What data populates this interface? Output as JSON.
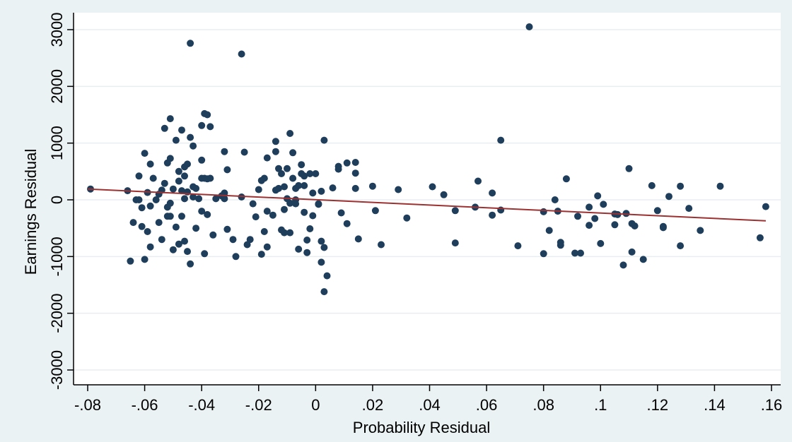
{
  "chart_data": {
    "type": "scatter",
    "title": "",
    "xlabel": "Probability Residual",
    "ylabel": "Earnings Residual",
    "xlim": [
      -0.08,
      0.16
    ],
    "ylim": [
      -3000,
      3000
    ],
    "x_ticks": [
      -0.08,
      -0.06,
      -0.04,
      -0.02,
      0,
      0.02,
      0.04,
      0.06,
      0.08,
      0.1,
      0.12,
      0.14,
      0.16
    ],
    "x_tick_labels": [
      "-.08",
      "-.06",
      "-.04",
      "-.02",
      "0",
      ".02",
      ".04",
      ".06",
      ".08",
      ".1",
      ".12",
      ".14",
      ".16"
    ],
    "y_ticks": [
      -3000,
      -2000,
      -1000,
      0,
      1000,
      2000,
      3000
    ],
    "y_tick_labels": [
      "-3000",
      "-2000",
      "-1000",
      "0",
      "1000",
      "2000",
      "3000"
    ],
    "grid": "horizontal",
    "legend": "none",
    "colors": {
      "background": "#eaf2f3",
      "plot_area": "#ffffff",
      "gridline": "#e8eef0",
      "points": "#1f3e5b",
      "fit_line": "#9c3131"
    },
    "fit_line": {
      "x": [
        -0.08,
        0.158
      ],
      "y": [
        190,
        -370
      ]
    },
    "points": [
      [
        -0.079,
        190
      ],
      [
        -0.066,
        160
      ],
      [
        -0.065,
        -1080
      ],
      [
        -0.064,
        -400
      ],
      [
        -0.063,
        0
      ],
      [
        -0.062,
        420
      ],
      [
        -0.062,
        0
      ],
      [
        -0.061,
        -470
      ],
      [
        -0.061,
        -140
      ],
      [
        -0.06,
        820
      ],
      [
        -0.06,
        -1050
      ],
      [
        -0.059,
        -560
      ],
      [
        -0.059,
        130
      ],
      [
        -0.058,
        630
      ],
      [
        -0.058,
        -830
      ],
      [
        -0.058,
        -110
      ],
      [
        -0.057,
        380
      ],
      [
        -0.056,
        0
      ],
      [
        -0.055,
        100
      ],
      [
        -0.055,
        -400
      ],
      [
        -0.054,
        170
      ],
      [
        -0.054,
        -700
      ],
      [
        -0.053,
        290
      ],
      [
        -0.053,
        1260
      ],
      [
        -0.052,
        650
      ],
      [
        -0.052,
        -290
      ],
      [
        -0.052,
        -130
      ],
      [
        -0.051,
        1430
      ],
      [
        -0.051,
        730
      ],
      [
        -0.051,
        -60
      ],
      [
        -0.051,
        -290
      ],
      [
        -0.05,
        190
      ],
      [
        -0.05,
        -880
      ],
      [
        -0.049,
        1050
      ],
      [
        -0.049,
        -480
      ],
      [
        -0.048,
        330
      ],
      [
        -0.048,
        -780
      ],
      [
        -0.048,
        500
      ],
      [
        -0.047,
        1230
      ],
      [
        -0.047,
        -290
      ],
      [
        -0.047,
        160
      ],
      [
        -0.046,
        420
      ],
      [
        -0.046,
        -730
      ],
      [
        -0.046,
        20
      ],
      [
        -0.046,
        580
      ],
      [
        -0.045,
        630
      ],
      [
        -0.045,
        -910
      ],
      [
        -0.045,
        140
      ],
      [
        -0.044,
        1100
      ],
      [
        -0.044,
        -1130
      ],
      [
        -0.044,
        2760
      ],
      [
        -0.043,
        950
      ],
      [
        -0.043,
        230
      ],
      [
        -0.043,
        50
      ],
      [
        -0.042,
        -500
      ],
      [
        -0.042,
        200
      ],
      [
        -0.041,
        20
      ],
      [
        -0.04,
        1310
      ],
      [
        -0.04,
        380
      ],
      [
        -0.04,
        -200
      ],
      [
        -0.04,
        700
      ],
      [
        -0.039,
        1520
      ],
      [
        -0.039,
        380
      ],
      [
        -0.039,
        -950
      ],
      [
        -0.038,
        -260
      ],
      [
        -0.038,
        1500
      ],
      [
        -0.038,
        370
      ],
      [
        -0.037,
        1290
      ],
      [
        -0.037,
        380
      ],
      [
        -0.036,
        -620
      ],
      [
        -0.035,
        20
      ],
      [
        -0.033,
        70
      ],
      [
        -0.032,
        850
      ],
      [
        -0.032,
        20
      ],
      [
        -0.032,
        120
      ],
      [
        -0.031,
        530
      ],
      [
        -0.031,
        -520
      ],
      [
        -0.029,
        -700
      ],
      [
        -0.028,
        -1000
      ],
      [
        -0.026,
        2570
      ],
      [
        -0.026,
        50
      ],
      [
        -0.025,
        840
      ],
      [
        -0.024,
        -790
      ],
      [
        -0.023,
        -700
      ],
      [
        -0.022,
        -70
      ],
      [
        -0.021,
        -300
      ],
      [
        -0.02,
        180
      ],
      [
        -0.019,
        -960
      ],
      [
        -0.019,
        340
      ],
      [
        -0.018,
        -560
      ],
      [
        -0.018,
        380
      ],
      [
        -0.017,
        -200
      ],
      [
        -0.017,
        740
      ],
      [
        -0.017,
        -830
      ],
      [
        -0.015,
        -270
      ],
      [
        -0.014,
        850
      ],
      [
        -0.014,
        1030
      ],
      [
        -0.014,
        170
      ],
      [
        -0.013,
        200
      ],
      [
        -0.013,
        550
      ],
      [
        -0.012,
        460
      ],
      [
        -0.012,
        -530
      ],
      [
        -0.011,
        -170
      ],
      [
        -0.011,
        -580
      ],
      [
        -0.011,
        230
      ],
      [
        -0.01,
        550
      ],
      [
        -0.01,
        20
      ],
      [
        -0.009,
        -580
      ],
      [
        -0.009,
        -60
      ],
      [
        -0.009,
        1170
      ],
      [
        -0.008,
        830
      ],
      [
        -0.008,
        380
      ],
      [
        -0.007,
        -70
      ],
      [
        -0.007,
        200
      ],
      [
        -0.007,
        0
      ],
      [
        -0.006,
        250
      ],
      [
        -0.006,
        -870
      ],
      [
        -0.005,
        620
      ],
      [
        -0.005,
        460
      ],
      [
        -0.004,
        -220
      ],
      [
        -0.004,
        250
      ],
      [
        -0.004,
        420
      ],
      [
        -0.003,
        -710
      ],
      [
        -0.003,
        -930
      ],
      [
        -0.002,
        460
      ],
      [
        -0.002,
        -510
      ],
      [
        -0.001,
        120
      ],
      [
        -0.001,
        -280
      ],
      [
        0,
        460
      ],
      [
        0.001,
        -80
      ],
      [
        0.001,
        -70
      ],
      [
        0.002,
        -730
      ],
      [
        0.002,
        -1100
      ],
      [
        0.002,
        150
      ],
      [
        0.003,
        -840
      ],
      [
        0.003,
        1050
      ],
      [
        0.003,
        -1620
      ],
      [
        0.004,
        -1340
      ],
      [
        0.006,
        210
      ],
      [
        0.008,
        590
      ],
      [
        0.008,
        540
      ],
      [
        0.009,
        -230
      ],
      [
        0.011,
        -420
      ],
      [
        0.011,
        650
      ],
      [
        0.014,
        660
      ],
      [
        0.014,
        470
      ],
      [
        0.014,
        200
      ],
      [
        0.015,
        -690
      ],
      [
        0.02,
        240
      ],
      [
        0.021,
        -190
      ],
      [
        0.023,
        -790
      ],
      [
        0.029,
        180
      ],
      [
        0.032,
        -320
      ],
      [
        0.041,
        230
      ],
      [
        0.045,
        90
      ],
      [
        0.049,
        -190
      ],
      [
        0.049,
        -760
      ],
      [
        0.056,
        -130
      ],
      [
        0.057,
        330
      ],
      [
        0.062,
        120
      ],
      [
        0.062,
        -270
      ],
      [
        0.065,
        1050
      ],
      [
        0.065,
        -180
      ],
      [
        0.071,
        -810
      ],
      [
        0.075,
        3050
      ],
      [
        0.08,
        -210
      ],
      [
        0.08,
        -950
      ],
      [
        0.082,
        -540
      ],
      [
        0.084,
        0
      ],
      [
        0.085,
        -200
      ],
      [
        0.086,
        -750
      ],
      [
        0.086,
        -800
      ],
      [
        0.088,
        370
      ],
      [
        0.091,
        -940
      ],
      [
        0.092,
        -290
      ],
      [
        0.093,
        -940
      ],
      [
        0.096,
        -450
      ],
      [
        0.096,
        -130
      ],
      [
        0.098,
        -330
      ],
      [
        0.099,
        70
      ],
      [
        0.1,
        -770
      ],
      [
        0.101,
        -80
      ],
      [
        0.105,
        -250
      ],
      [
        0.105,
        -440
      ],
      [
        0.106,
        -260
      ],
      [
        0.108,
        -1150
      ],
      [
        0.109,
        -240
      ],
      [
        0.11,
        550
      ],
      [
        0.111,
        -420
      ],
      [
        0.111,
        -920
      ],
      [
        0.112,
        -460
      ],
      [
        0.115,
        -1050
      ],
      [
        0.118,
        250
      ],
      [
        0.12,
        -190
      ],
      [
        0.122,
        -470
      ],
      [
        0.122,
        -490
      ],
      [
        0.124,
        60
      ],
      [
        0.128,
        -810
      ],
      [
        0.128,
        240
      ],
      [
        0.131,
        -150
      ],
      [
        0.135,
        -540
      ],
      [
        0.142,
        240
      ],
      [
        0.156,
        -670
      ],
      [
        0.158,
        -120
      ]
    ]
  }
}
